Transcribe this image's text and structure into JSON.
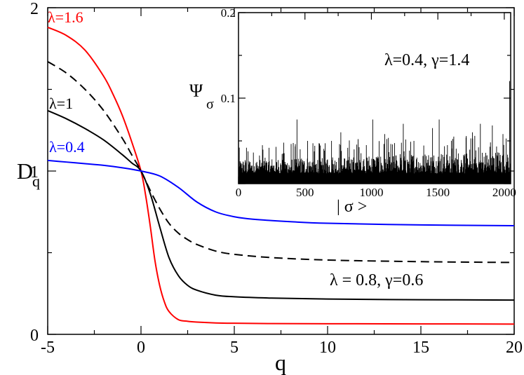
{
  "chart_data": [
    {
      "type": "line",
      "role": "main",
      "xlabel": "q",
      "ylabel_main": "D",
      "ylabel_sub": "q",
      "xlim": [
        -5,
        20
      ],
      "ylim": [
        0,
        2
      ],
      "xticks": [
        "-5",
        "0",
        "5",
        "10",
        "15",
        "20"
      ],
      "xtick_values": [
        -5,
        0,
        5,
        10,
        15,
        20
      ],
      "yticks": [
        "0",
        "1",
        "2"
      ],
      "ytick_values": [
        0,
        1,
        2
      ],
      "series": [
        {
          "name": "λ=1.6",
          "color": "#ff0000",
          "dash": "solid",
          "x": [
            -5,
            -4,
            -3,
            -2,
            -1.5,
            -1,
            -0.5,
            0,
            0.25,
            0.5,
            0.75,
            1,
            1.25,
            1.5,
            2,
            2.5,
            3,
            4,
            5,
            7,
            10,
            15,
            20
          ],
          "y": [
            1.88,
            1.83,
            1.74,
            1.58,
            1.47,
            1.34,
            1.18,
            1.0,
            0.85,
            0.66,
            0.45,
            0.3,
            0.2,
            0.14,
            0.09,
            0.08,
            0.075,
            0.07,
            0.068,
            0.066,
            0.065,
            0.064,
            0.063
          ]
        },
        {
          "name": "dashed",
          "color": "#000000",
          "dash": "dashed",
          "x": [
            -5,
            -4,
            -3,
            -2,
            -1,
            -0.5,
            0,
            0.5,
            1,
            1.5,
            2,
            2.5,
            3,
            4,
            5,
            7,
            10,
            15,
            20
          ],
          "y": [
            1.67,
            1.6,
            1.5,
            1.37,
            1.2,
            1.1,
            1.0,
            0.88,
            0.77,
            0.68,
            0.62,
            0.58,
            0.55,
            0.51,
            0.49,
            0.47,
            0.455,
            0.445,
            0.44
          ]
        },
        {
          "name": "λ=1",
          "color": "#000000",
          "dash": "solid",
          "x": [
            -5,
            -4,
            -3,
            -2,
            -1,
            -0.5,
            0,
            0.5,
            1,
            1.5,
            2,
            2.5,
            3,
            4,
            5,
            7,
            10,
            15,
            20
          ],
          "y": [
            1.37,
            1.32,
            1.26,
            1.19,
            1.1,
            1.05,
            1.0,
            0.86,
            0.66,
            0.47,
            0.36,
            0.3,
            0.27,
            0.24,
            0.23,
            0.222,
            0.216,
            0.212,
            0.21
          ]
        },
        {
          "name": "λ=0.4",
          "color": "#0000ff",
          "dash": "solid",
          "x": [
            -5,
            -4,
            -3,
            -2,
            -1,
            0,
            1,
            2,
            3,
            4,
            5,
            6,
            8,
            10,
            15,
            20
          ],
          "y": [
            1.065,
            1.055,
            1.045,
            1.035,
            1.02,
            1.0,
            0.97,
            0.9,
            0.81,
            0.75,
            0.72,
            0.705,
            0.69,
            0.68,
            0.67,
            0.665
          ]
        }
      ],
      "labels": {
        "lambda_16": "λ=1.6",
        "lambda_1": "λ=1",
        "lambda_04": "λ=0.4",
        "params": "λ = 0.8, γ=0.6"
      }
    },
    {
      "type": "bar",
      "role": "inset",
      "xlabel": "| σ >",
      "ylabel_main": "Ψ",
      "ylabel_sub": "σ",
      "xlim": [
        0,
        2048
      ],
      "ylim": [
        0,
        0.2
      ],
      "xticks": [
        "0",
        "500",
        "1000",
        "1500",
        "2000"
      ],
      "xtick_values": [
        0,
        500,
        1000,
        1500,
        2000
      ],
      "yticks": [
        "0.1",
        "0.2"
      ],
      "ytick_values": [
        0.1,
        0.2
      ],
      "annotation": "λ=0.4, γ=1.4",
      "baseline": 0.012,
      "typical_max": 0.03,
      "peaks": [
        {
          "x": 60,
          "y": 0.042
        },
        {
          "x": 180,
          "y": 0.045
        },
        {
          "x": 340,
          "y": 0.048
        },
        {
          "x": 440,
          "y": 0.075
        },
        {
          "x": 520,
          "y": 0.05
        },
        {
          "x": 700,
          "y": 0.05
        },
        {
          "x": 770,
          "y": 0.06
        },
        {
          "x": 900,
          "y": 0.052
        },
        {
          "x": 1010,
          "y": 0.075
        },
        {
          "x": 1100,
          "y": 0.058
        },
        {
          "x": 1240,
          "y": 0.07
        },
        {
          "x": 1320,
          "y": 0.05
        },
        {
          "x": 1460,
          "y": 0.065
        },
        {
          "x": 1510,
          "y": 0.075
        },
        {
          "x": 1620,
          "y": 0.055
        },
        {
          "x": 1760,
          "y": 0.06
        },
        {
          "x": 1820,
          "y": 0.07
        },
        {
          "x": 1910,
          "y": 0.068
        },
        {
          "x": 1990,
          "y": 0.058
        },
        {
          "x": 2040,
          "y": 0.12
        }
      ]
    }
  ]
}
